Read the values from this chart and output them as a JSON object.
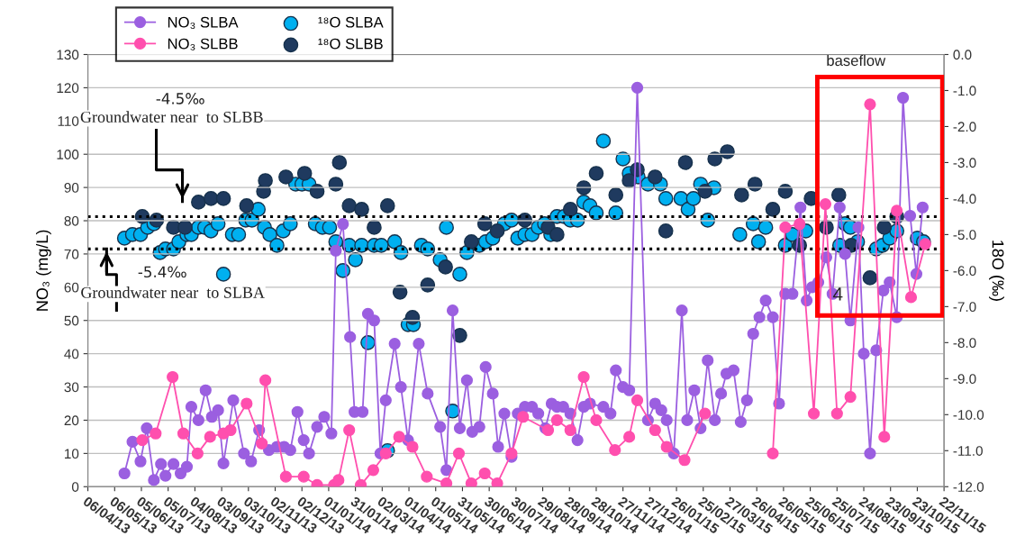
{
  "chart_data": {
    "type": "line",
    "ylabel": "NO₃ (mg/L)",
    "y2label": "18O (‰)",
    "xlim": [
      "2013-04-06",
      "2015-11-22"
    ],
    "xticks": [
      {
        "value": "2013-04-06",
        "label": "06/04/13"
      },
      {
        "value": "2013-05-06",
        "label": "06/05/13"
      },
      {
        "value": "2013-06-05",
        "label": "05/06/13"
      },
      {
        "value": "2013-07-05",
        "label": "05/07/13"
      },
      {
        "value": "2013-08-04",
        "label": "04/08/13"
      },
      {
        "value": "2013-09-03",
        "label": "03/09/13"
      },
      {
        "value": "2013-10-03",
        "label": "03/10/13"
      },
      {
        "value": "2013-11-02",
        "label": "02/11/13"
      },
      {
        "value": "2013-12-02",
        "label": "02/12/13"
      },
      {
        "value": "2014-01-01",
        "label": "01/01/14"
      },
      {
        "value": "2014-01-31",
        "label": "31/01/14"
      },
      {
        "value": "2014-03-02",
        "label": "02/03/14"
      },
      {
        "value": "2014-04-01",
        "label": "01/04/14"
      },
      {
        "value": "2014-05-01",
        "label": "01/05/14"
      },
      {
        "value": "2014-05-31",
        "label": "31/05/14"
      },
      {
        "value": "2014-06-30",
        "label": "30/06/14"
      },
      {
        "value": "2014-07-30",
        "label": "30/07/14"
      },
      {
        "value": "2014-08-29",
        "label": "29/08/14"
      },
      {
        "value": "2014-09-28",
        "label": "28/09/14"
      },
      {
        "value": "2014-10-28",
        "label": "28/10/14"
      },
      {
        "value": "2014-11-27",
        "label": "27/11/14"
      },
      {
        "value": "2014-12-27",
        "label": "27/12/14"
      },
      {
        "value": "2015-01-26",
        "label": "26/01/15"
      },
      {
        "value": "2015-02-25",
        "label": "25/02/15"
      },
      {
        "value": "2015-03-27",
        "label": "27/03/15"
      },
      {
        "value": "2015-04-26",
        "label": "26/04/15"
      },
      {
        "value": "2015-05-26",
        "label": "26/05/15"
      },
      {
        "value": "2015-06-25",
        "label": "25/06/15"
      },
      {
        "value": "2015-07-25",
        "label": "25/07/15"
      },
      {
        "value": "2015-08-24",
        "label": "24/08/15"
      },
      {
        "value": "2015-09-23",
        "label": "23/09/15"
      },
      {
        "value": "2015-10-23",
        "label": "23/10/15"
      },
      {
        "value": "2015-11-22",
        "label": "22/11/15"
      }
    ],
    "ylim": [
      0,
      130
    ],
    "yticks": [
      0,
      10,
      20,
      30,
      40,
      50,
      60,
      70,
      80,
      90,
      100,
      110,
      120,
      130
    ],
    "y2lim": [
      -12,
      0
    ],
    "y2ticks": [
      {
        "value": -12,
        "label": "-12.0"
      },
      {
        "value": -11,
        "label": "-11.0"
      },
      {
        "value": -10,
        "label": "-10.0"
      },
      {
        "value": -9,
        "label": "-9.0"
      },
      {
        "value": -8,
        "label": "-8.0"
      },
      {
        "value": -7,
        "label": "-7.0"
      },
      {
        "value": -6,
        "label": "-6.0"
      },
      {
        "value": -5,
        "label": "-5.0"
      },
      {
        "value": -4,
        "label": "-4.0"
      },
      {
        "value": -3,
        "label": "-3.0"
      },
      {
        "value": -2,
        "label": "-2.0"
      },
      {
        "value": -1,
        "label": "-1.0"
      },
      {
        "value": 0,
        "label": "0.0"
      }
    ],
    "grid": "y",
    "legend": "top left",
    "marker": "circle",
    "series": [
      {
        "name": "NO₃ SLBA",
        "type": "line",
        "line_style": "solid",
        "color": "#9b5fe0",
        "x": [
          "2013-05-17",
          "2013-05-26",
          "2013-06-04",
          "2013-06-11",
          "2013-06-19",
          "2013-06-27",
          "2013-07-02",
          "2013-07-11",
          "2013-07-19",
          "2013-07-26",
          "2013-07-31",
          "2013-08-08",
          "2013-08-16",
          "2013-08-23",
          "2013-08-30",
          "2013-09-05",
          "2013-09-16",
          "2013-09-28",
          "2013-10-06",
          "2013-10-15",
          "2013-10-26",
          "2013-11-04",
          "2013-11-12",
          "2013-11-19",
          "2013-11-27",
          "2013-12-04",
          "2013-12-10",
          "2013-12-19",
          "2013-12-27",
          "2014-01-04",
          "2014-01-09",
          "2014-01-17",
          "2014-01-25",
          "2014-01-30",
          "2014-02-08",
          "2014-02-14",
          "2014-02-21",
          "2014-02-28",
          "2014-03-06",
          "2014-03-16",
          "2014-03-23",
          "2014-03-31",
          "2014-04-12",
          "2014-04-22",
          "2014-05-06",
          "2014-05-13",
          "2014-05-20",
          "2014-05-28",
          "2014-06-05",
          "2014-06-11",
          "2014-06-19",
          "2014-06-26",
          "2014-07-04",
          "2014-07-10",
          "2014-07-17",
          "2014-07-25",
          "2014-08-01",
          "2014-08-09",
          "2014-08-17",
          "2014-08-24",
          "2014-09-01",
          "2014-09-08",
          "2014-09-14",
          "2014-09-21",
          "2014-09-29",
          "2014-10-07",
          "2014-10-14",
          "2014-10-21",
          "2014-11-05",
          "2014-11-13",
          "2014-11-19",
          "2014-11-27",
          "2014-12-04",
          "2014-12-13",
          "2014-12-25",
          "2015-01-02",
          "2015-01-09",
          "2015-01-15",
          "2015-01-23",
          "2015-02-01",
          "2015-02-07",
          "2015-02-15",
          "2015-02-22",
          "2015-03-02",
          "2015-03-10",
          "2015-03-17",
          "2015-03-23",
          "2015-03-31",
          "2015-04-08",
          "2015-04-15",
          "2015-04-22",
          "2015-04-29",
          "2015-05-06",
          "2015-05-14",
          "2015-05-21",
          "2015-05-28",
          "2015-06-05",
          "2015-06-14",
          "2015-06-21",
          "2015-06-27",
          "2015-07-04",
          "2015-07-13",
          "2015-07-20",
          "2015-07-28",
          "2015-08-03",
          "2015-08-09",
          "2015-08-18",
          "2015-08-24",
          "2015-08-31",
          "2015-09-07",
          "2015-09-15",
          "2015-09-22",
          "2015-09-30",
          "2015-10-07",
          "2015-10-15",
          "2015-10-22",
          "2015-10-29"
        ],
        "values": [
          4,
          13.5,
          7.6,
          17.6,
          2,
          6.8,
          3.3,
          6.8,
          4,
          6,
          24,
          20,
          29,
          21,
          23,
          7,
          26,
          10,
          7.6,
          17,
          11,
          12,
          12,
          11,
          22.5,
          14,
          10,
          18,
          21,
          16,
          71,
          79,
          45,
          22.5,
          22.5,
          52,
          50,
          10,
          26,
          43,
          30,
          14,
          43,
          28,
          18,
          5,
          53,
          17.6,
          32,
          16.5,
          18,
          36,
          28,
          12,
          22,
          9,
          22,
          24,
          24,
          22,
          17.6,
          25,
          24,
          24,
          22,
          14,
          24,
          25,
          24,
          22,
          35,
          30,
          29,
          120,
          20,
          25,
          23,
          20,
          10,
          53,
          20,
          29,
          17.6,
          38,
          20,
          28,
          34,
          35,
          19.5,
          26,
          46,
          51,
          56,
          51,
          25,
          58,
          58,
          84,
          56,
          60,
          61.5,
          69,
          58,
          84,
          70,
          50,
          78,
          40,
          10,
          41,
          59,
          61.5,
          51,
          117,
          81.5,
          64,
          84
        ]
      },
      {
        "name": "NO₃ SLBB",
        "type": "line",
        "line_style": "solid",
        "color": "#ff4fae",
        "x": [
          "2013-06-06",
          "2013-06-21",
          "2013-07-10",
          "2013-07-22",
          "2013-08-07",
          "2013-08-21",
          "2013-09-05",
          "2013-09-13",
          "2013-10-01",
          "2013-10-18",
          "2013-10-22",
          "2013-11-14",
          "2013-12-04",
          "2013-12-19",
          "2014-01-07",
          "2014-01-12",
          "2014-01-24",
          "2014-02-06",
          "2014-02-20",
          "2014-03-06",
          "2014-03-21",
          "2014-04-05",
          "2014-04-21",
          "2014-05-13",
          "2014-05-27",
          "2014-06-10",
          "2014-06-25",
          "2014-07-09",
          "2014-07-25",
          "2014-08-07",
          "2014-09-04",
          "2014-09-14",
          "2014-09-29",
          "2014-10-14",
          "2014-10-28",
          "2014-11-18",
          "2014-12-04",
          "2014-12-13",
          "2015-01-02",
          "2015-01-15",
          "2015-02-04",
          "2015-02-27",
          "2015-04-05",
          "2015-05-14",
          "2015-05-28",
          "2015-06-13",
          "2015-06-29",
          "2015-07-12",
          "2015-07-25",
          "2015-08-09",
          "2015-08-31",
          "2015-09-16",
          "2015-09-30",
          "2015-10-16",
          "2015-11-01"
        ],
        "values": [
          14,
          16,
          33,
          16,
          10,
          15,
          16,
          17,
          25,
          13,
          32,
          3,
          3,
          0.5,
          0.5,
          2,
          17,
          0.5,
          5,
          10,
          15,
          12,
          3,
          1,
          10,
          1,
          4,
          1,
          10,
          21,
          17,
          20,
          17,
          33,
          20,
          11,
          15,
          26,
          17,
          12,
          8,
          22,
          null,
          10,
          78,
          79,
          22,
          85,
          22,
          27,
          115,
          15,
          83,
          57,
          73
        ]
      },
      {
        "name": "¹⁸O SLBA",
        "type": "scatter",
        "axis": "y2",
        "color": "#00b0f0",
        "x": [
          "2013-05-17",
          "2013-05-26",
          "2013-06-04",
          "2013-06-12",
          "2013-06-19",
          "2013-06-26",
          "2013-07-02",
          "2013-07-11",
          "2013-07-17",
          "2013-07-26",
          "2013-07-31",
          "2013-08-08",
          "2013-08-15",
          "2013-08-22",
          "2013-08-30",
          "2013-09-05",
          "2013-09-15",
          "2013-09-22",
          "2013-09-30",
          "2013-10-07",
          "2013-10-14",
          "2013-10-21",
          "2013-10-27",
          "2013-11-04",
          "2013-11-11",
          "2013-11-19",
          "2013-11-25",
          "2013-12-02",
          "2013-12-10",
          "2013-12-17",
          "2013-12-25",
          "2014-01-02",
          "2014-01-09",
          "2014-01-17",
          "2014-01-24",
          "2014-01-31",
          "2014-02-07",
          "2014-02-14",
          "2014-02-21",
          "2014-03-01",
          "2014-03-08",
          "2014-03-16",
          "2014-03-23",
          "2014-03-31",
          "2014-04-06",
          "2014-04-15",
          "2014-04-22",
          "2014-05-06",
          "2014-05-13",
          "2014-05-20",
          "2014-05-28",
          "2014-06-05",
          "2014-06-19",
          "2014-06-26",
          "2014-07-04",
          "2014-07-17",
          "2014-07-25",
          "2014-08-01",
          "2014-08-09",
          "2014-08-17",
          "2014-08-24",
          "2014-08-31",
          "2014-09-07",
          "2014-09-14",
          "2014-09-22",
          "2014-09-29",
          "2014-10-07",
          "2014-10-14",
          "2014-10-21",
          "2014-10-28",
          "2014-11-05",
          "2014-11-19",
          "2014-11-27",
          "2014-12-04",
          "2014-12-14",
          "2014-12-25",
          "2015-01-08",
          "2015-01-14",
          "2015-01-31",
          "2015-02-08",
          "2015-02-14",
          "2015-02-22",
          "2015-03-02",
          "2015-03-09",
          "2015-04-07",
          "2015-04-22",
          "2015-04-28",
          "2015-05-06",
          "2015-05-28",
          "2015-06-05",
          "2015-06-20",
          "2015-07-28",
          "2015-08-03",
          "2015-08-09",
          "2015-08-17",
          "2015-09-07",
          "2015-09-14",
          "2015-09-22",
          "2015-09-30",
          "2015-10-23",
          "2015-10-30"
        ],
        "values": [
          -5.1,
          -5.0,
          -5.0,
          -4.8,
          -4.7,
          -5.5,
          -5.4,
          -5.4,
          -5.2,
          -5.0,
          -5.0,
          -4.8,
          -4.8,
          -4.9,
          -4.7,
          -6.1,
          -5.0,
          -5.0,
          -4.6,
          -4.6,
          -4.3,
          -4.8,
          -5.0,
          -5.3,
          -4.9,
          -4.7,
          -3.6,
          -3.6,
          -3.6,
          -4.7,
          -4.8,
          -4.8,
          -5.2,
          -6.0,
          -5.3,
          -5.7,
          -5.3,
          -8.0,
          -5.3,
          -5.3,
          -11.0,
          -5.2,
          -5.5,
          -7.5,
          -7.5,
          -5.3,
          -5.4,
          -5.7,
          -4.8,
          -9.9,
          -6.1,
          -5.5,
          -5.3,
          -5.2,
          -5.1,
          -4.7,
          -4.6,
          -5.1,
          -5.0,
          -5.0,
          -4.8,
          -4.7,
          -5.0,
          -4.5,
          -4.5,
          -4.6,
          -4.6,
          -4.1,
          -4.2,
          -4.4,
          -2.4,
          -4.4,
          -2.9,
          -3.3,
          -3.4,
          -3.6,
          -3.6,
          -4.0,
          -4.0,
          -4.3,
          -4.0,
          -3.6,
          -4.6,
          -3.7,
          -5.0,
          -4.7,
          -5.2,
          -4.8,
          -5.3,
          -5.0,
          -4.9,
          -5.3,
          -4.7,
          -4.8,
          -5.2,
          -5.4,
          -5.3,
          -5.1,
          -4.9,
          -5.1,
          -5.2
        ]
      },
      {
        "name": "¹⁸O SLBB",
        "type": "scatter",
        "axis": "y2",
        "color": "#1f3a5f",
        "x": [
          "2013-06-06",
          "2013-06-22",
          "2013-07-11",
          "2013-07-24",
          "2013-08-08",
          "2013-08-22",
          "2013-09-05",
          "2013-10-01",
          "2013-10-20",
          "2013-10-22",
          "2013-11-14",
          "2013-12-05",
          "2013-12-19",
          "2014-01-09",
          "2014-01-13",
          "2014-01-24",
          "2014-02-07",
          "2014-02-21",
          "2014-03-08",
          "2014-03-22",
          "2014-04-05",
          "2014-04-22",
          "2014-05-12",
          "2014-05-28",
          "2014-06-10",
          "2014-06-25",
          "2014-07-09",
          "2014-08-09",
          "2014-09-04",
          "2014-09-14",
          "2014-09-29",
          "2014-10-14",
          "2014-10-28",
          "2014-11-19",
          "2014-12-04",
          "2014-12-13",
          "2015-01-02",
          "2015-01-14",
          "2015-02-05",
          "2015-02-27",
          "2015-03-10",
          "2015-03-24",
          "2015-04-09",
          "2015-04-24",
          "2015-05-14",
          "2015-05-28",
          "2015-06-13",
          "2015-06-26",
          "2015-07-13",
          "2015-07-27",
          "2015-08-10",
          "2015-08-31",
          "2015-09-16",
          "2015-09-30"
        ],
        "values": [
          -4.5,
          -4.6,
          -4.8,
          -4.8,
          -4.1,
          -4.0,
          -4.0,
          -4.2,
          -3.8,
          -3.5,
          -3.4,
          -3.3,
          -3.8,
          -3.6,
          -3.0,
          -4.2,
          -4.3,
          -4.8,
          -4.2,
          -6.6,
          -7.3,
          -6.4,
          -5.9,
          -7.8,
          -5.2,
          -4.7,
          -4.9,
          -4.6,
          -4.8,
          -5.0,
          -4.3,
          -3.7,
          -3.3,
          -3.9,
          -3.5,
          -3.2,
          -3.4,
          -4.9,
          -3.0,
          -3.8,
          -2.9,
          -2.7,
          -3.9,
          -3.6,
          -4.3,
          -3.8,
          -5.3,
          -4.0,
          -4.8,
          -3.9,
          -5.3,
          -6.2,
          -4.8,
          -4.5
        ]
      }
    ],
    "ref_lines": [
      {
        "axis": "y2",
        "value": -4.5,
        "color": "#000000",
        "line_style": "dotted"
      },
      {
        "axis": "y2",
        "value": -5.4,
        "color": "#000000",
        "line_style": "dotted"
      }
    ],
    "annotations": [
      "-4.5‰",
      "Groundwater near  to SLBB",
      "-5.4‰",
      {
        "text": "Groundwater near  to SLBA",
        "x": "2013-04-27",
        "y": 71.5
      },
      "baseflow",
      "4"
    ]
  }
}
